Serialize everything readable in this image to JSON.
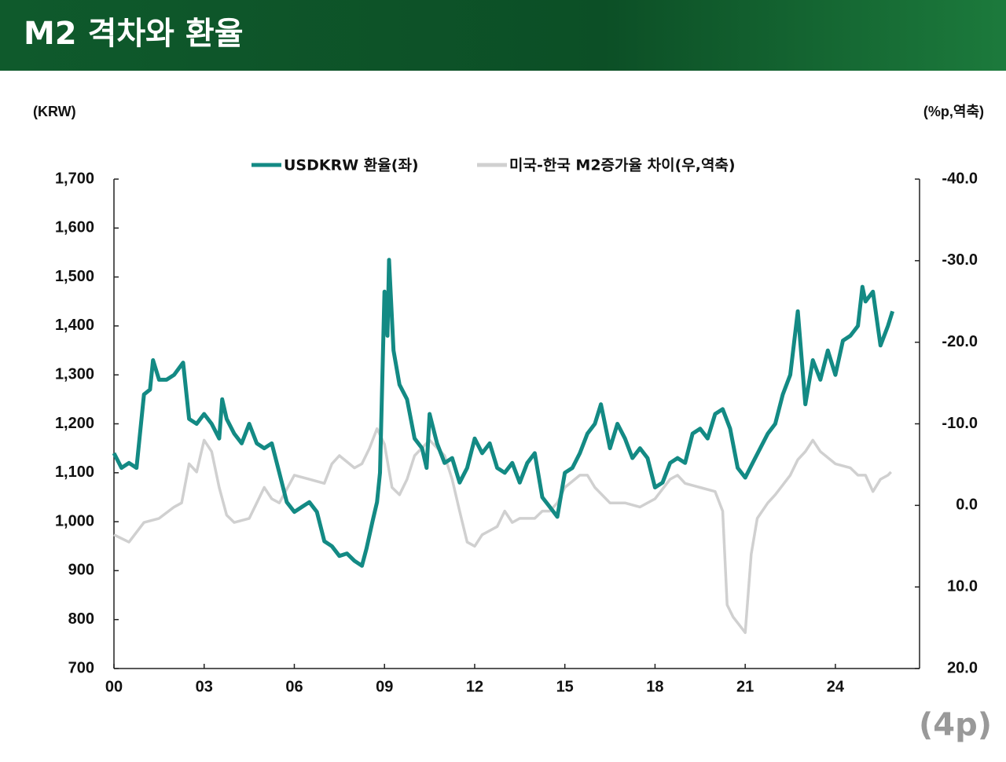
{
  "header": {
    "title": "M2 격차와 환율"
  },
  "page_number": "(4p)",
  "chart_data": {
    "type": "line",
    "y_axis_label": "(KRW)",
    "y2_axis_label": "(%p,역축)",
    "xlim": [
      2000,
      2026.8
    ],
    "xticks": [
      {
        "value": 2000,
        "label": "00"
      },
      {
        "value": 2003,
        "label": "03"
      },
      {
        "value": 2006,
        "label": "06"
      },
      {
        "value": 2009,
        "label": "09"
      },
      {
        "value": 2012,
        "label": "12"
      },
      {
        "value": 2015,
        "label": "15"
      },
      {
        "value": 2018,
        "label": "18"
      },
      {
        "value": 2021,
        "label": "21"
      },
      {
        "value": 2024,
        "label": "24"
      }
    ],
    "ylim": [
      700,
      1700
    ],
    "yticks": [
      700,
      800,
      900,
      {
        "value": 1000,
        "label": "1,000"
      },
      {
        "value": 1100,
        "label": "1,100"
      },
      {
        "value": 1200,
        "label": "1,200"
      },
      {
        "value": 1300,
        "label": "1,300"
      },
      {
        "value": 1400,
        "label": "1,400"
      },
      {
        "value": 1500,
        "label": "1,500"
      },
      {
        "value": 1600,
        "label": "1,600"
      },
      {
        "value": 1700,
        "label": "1,700"
      }
    ],
    "y2lim": [
      20,
      -40
    ],
    "y2ticks": [
      {
        "value": -40,
        "label": "-40.0"
      },
      {
        "value": -30,
        "label": "-30.0"
      },
      {
        "value": -20,
        "label": "-20.0"
      },
      {
        "value": -10,
        "label": "-10.0"
      },
      {
        "value": 0,
        "label": "0.0"
      },
      {
        "value": 10,
        "label": "10.0"
      },
      {
        "value": 20,
        "label": "20.0"
      }
    ],
    "series": [
      {
        "name": "USDKRW 환율(좌)",
        "color": "#138a84",
        "axis": "y",
        "x": [
          2000.0,
          2000.25,
          2000.5,
          2000.75,
          2001.0,
          2001.2,
          2001.3,
          2001.5,
          2001.75,
          2002.0,
          2002.3,
          2002.5,
          2002.75,
          2003.0,
          2003.25,
          2003.5,
          2003.6,
          2003.75,
          2004.0,
          2004.25,
          2004.5,
          2004.75,
          2005.0,
          2005.25,
          2005.5,
          2005.75,
          2006.0,
          2006.25,
          2006.5,
          2006.75,
          2007.0,
          2007.25,
          2007.5,
          2007.75,
          2008.0,
          2008.25,
          2008.4,
          2008.6,
          2008.75,
          2008.85,
          2009.0,
          2009.1,
          2009.15,
          2009.3,
          2009.5,
          2009.75,
          2010.0,
          2010.25,
          2010.4,
          2010.5,
          2010.75,
          2011.0,
          2011.25,
          2011.5,
          2011.75,
          2012.0,
          2012.25,
          2012.5,
          2012.75,
          2013.0,
          2013.25,
          2013.5,
          2013.75,
          2014.0,
          2014.25,
          2014.5,
          2014.75,
          2015.0,
          2015.25,
          2015.5,
          2015.75,
          2016.0,
          2016.2,
          2016.5,
          2016.75,
          2017.0,
          2017.25,
          2017.5,
          2017.75,
          2018.0,
          2018.25,
          2018.5,
          2018.75,
          2019.0,
          2019.25,
          2019.5,
          2019.75,
          2020.0,
          2020.25,
          2020.5,
          2020.75,
          2021.0,
          2021.25,
          2021.5,
          2021.75,
          2022.0,
          2022.25,
          2022.5,
          2022.75,
          2023.0,
          2023.25,
          2023.5,
          2023.75,
          2024.0,
          2024.25,
          2024.5,
          2024.75,
          2024.9,
          2025.0,
          2025.25,
          2025.5,
          2025.75,
          2025.9
        ],
        "values": [
          1140,
          1110,
          1120,
          1110,
          1260,
          1270,
          1330,
          1290,
          1290,
          1300,
          1325,
          1210,
          1200,
          1220,
          1200,
          1170,
          1250,
          1210,
          1180,
          1160,
          1200,
          1160,
          1150,
          1160,
          1100,
          1040,
          1020,
          1030,
          1040,
          1020,
          960,
          950,
          930,
          935,
          920,
          910,
          945,
          1000,
          1040,
          1100,
          1470,
          1380,
          1535,
          1350,
          1280,
          1250,
          1170,
          1150,
          1110,
          1220,
          1160,
          1120,
          1130,
          1080,
          1110,
          1170,
          1140,
          1160,
          1110,
          1100,
          1120,
          1080,
          1120,
          1140,
          1050,
          1030,
          1010,
          1100,
          1110,
          1140,
          1180,
          1200,
          1240,
          1150,
          1200,
          1170,
          1130,
          1150,
          1130,
          1070,
          1080,
          1120,
          1130,
          1120,
          1180,
          1190,
          1170,
          1220,
          1230,
          1190,
          1110,
          1090,
          1120,
          1150,
          1180,
          1200,
          1260,
          1300,
          1430,
          1240,
          1330,
          1290,
          1350,
          1300,
          1370,
          1380,
          1400,
          1480,
          1450,
          1470,
          1360,
          1400,
          1430
        ]
      },
      {
        "name": "미국-한국 M2증가율 차이(우,역축)",
        "color": "#d0d0d0",
        "axis": "y2",
        "x": [
          2000.0,
          2000.5,
          2001.0,
          2001.5,
          2002.0,
          2002.25,
          2002.5,
          2002.75,
          2003.0,
          2003.25,
          2003.5,
          2003.75,
          2004.0,
          2004.5,
          2004.75,
          2005.0,
          2005.25,
          2005.5,
          2006.0,
          2006.5,
          2007.0,
          2007.25,
          2007.5,
          2008.0,
          2008.25,
          2008.5,
          2008.75,
          2009.0,
          2009.25,
          2009.5,
          2009.75,
          2010.0,
          2010.5,
          2011.0,
          2011.25,
          2011.5,
          2011.75,
          2012.0,
          2012.25,
          2012.5,
          2012.75,
          2013.0,
          2013.25,
          2013.5,
          2014.0,
          2014.25,
          2014.5,
          2014.75,
          2015.0,
          2015.5,
          2015.75,
          2016.0,
          2016.5,
          2017.0,
          2017.5,
          2018.0,
          2018.5,
          2018.75,
          2019.0,
          2019.5,
          2020.0,
          2020.25,
          2020.4,
          2020.6,
          2021.0,
          2021.2,
          2021.4,
          2021.75,
          2022.0,
          2022.5,
          2022.75,
          2023.0,
          2023.25,
          2023.5,
          2024.0,
          2024.5,
          2024.75,
          2025.0,
          2025.25,
          2025.5,
          2025.75,
          2025.85
        ],
        "values": [
          3.6,
          4.5,
          2.1,
          1.6,
          0.2,
          -0.3,
          -5.1,
          -4.1,
          -8.0,
          -6.6,
          -2.2,
          1.2,
          2.1,
          1.6,
          -0.3,
          -2.2,
          -0.8,
          -0.3,
          -3.7,
          -3.2,
          -2.7,
          -5.1,
          -6.1,
          -4.6,
          -5.1,
          -7.0,
          -9.4,
          -7.5,
          -2.2,
          -1.3,
          -3.2,
          -6.1,
          -8.0,
          -6.1,
          -3.2,
          0.7,
          4.5,
          5.0,
          3.6,
          3.1,
          2.6,
          0.7,
          2.1,
          1.6,
          1.6,
          0.7,
          0.7,
          -0.3,
          -2.2,
          -3.7,
          -3.7,
          -2.2,
          -0.3,
          -0.3,
          0.2,
          -0.8,
          -3.2,
          -3.7,
          -2.7,
          -2.2,
          -1.7,
          0.7,
          12.2,
          13.7,
          15.6,
          6.0,
          1.6,
          -0.3,
          -1.3,
          -3.7,
          -5.6,
          -6.6,
          -8.0,
          -6.6,
          -5.1,
          -4.6,
          -3.7,
          -3.7,
          -1.7,
          -3.2,
          -3.7,
          -4.1
        ]
      }
    ]
  }
}
